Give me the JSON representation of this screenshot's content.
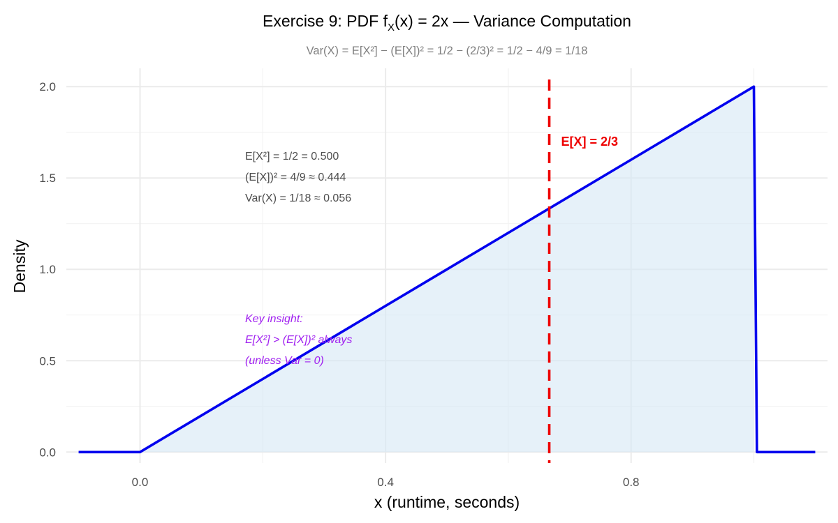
{
  "chart_data": {
    "type": "line",
    "title": "Exercise 9: PDF f_X(x) = 2x — Variance Computation",
    "title_parts": {
      "before_sub": "Exercise 9: PDF f",
      "sub": "X",
      "after_sub": "(x) = 2x — Variance Computation"
    },
    "subtitle": "Var(X) = E[X²] − (E[X])² = 1/2 − (2/3)² = 1/2 − 4/9 = 1/18",
    "xlabel": "x (runtime, seconds)",
    "ylabel": "Density",
    "xlim": [
      -0.12,
      1.12
    ],
    "ylim": [
      -0.06,
      2.1
    ],
    "x_ticks": [
      0.0,
      0.4,
      0.8
    ],
    "x_tick_labels": [
      "0.0",
      "0.4",
      "0.8"
    ],
    "y_ticks": [
      0.0,
      0.5,
      1.0,
      1.5,
      2.0
    ],
    "y_tick_labels": [
      "0.0",
      "0.5",
      "1.0",
      "1.5",
      "2.0"
    ],
    "grid": true,
    "series": [
      {
        "x": [
          -0.1,
          0.0,
          1.0,
          1.005,
          1.1
        ],
        "y": [
          0.0,
          0.0,
          2.0,
          0.0,
          0.0
        ],
        "color": "#0000ee"
      }
    ],
    "shaded_area": {
      "x": [
        0.0,
        1.0
      ],
      "y": [
        0.0,
        2.0
      ],
      "color": "#d6e8f5"
    },
    "vline": {
      "x": 0.6667,
      "label": "E[X] = 2/3",
      "color": "#ee0000",
      "style": "dashed"
    },
    "annotations": {
      "stats": [
        "E[X²] = 1/2 = 0.500",
        "(E[X])² = 4/9 ≈ 0.444",
        "Var(X) = 1/18 ≈ 0.056"
      ],
      "insight": [
        "Key insight:",
        "E[X²] > (E[X])² always",
        "(unless Var = 0)"
      ]
    }
  }
}
